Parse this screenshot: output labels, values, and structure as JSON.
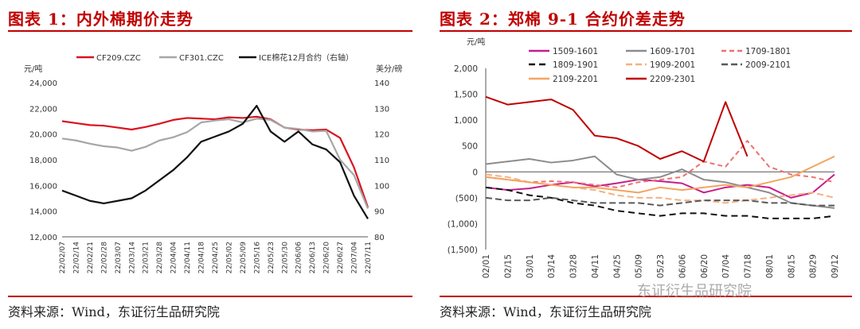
{
  "chart1": {
    "title": "图表 1：内外棉期价走势",
    "source": "资料来源：Wind，东证衍生品研究院",
    "chart_data": {
      "type": "line",
      "ylabel_left": "元/吨",
      "ylabel_right": "美分/磅",
      "ylim_left": [
        12000,
        24000
      ],
      "ylim_right": [
        80,
        140
      ],
      "yticks_left": [
        "12,000",
        "14,000",
        "16,000",
        "18,000",
        "20,000",
        "22,000",
        "24,000"
      ],
      "yticks_right": [
        "80",
        "90",
        "100",
        "110",
        "120",
        "130",
        "140"
      ],
      "x": [
        "22/02/07",
        "22/02/14",
        "22/02/21",
        "22/02/28",
        "22/03/07",
        "22/03/14",
        "22/03/21",
        "22/03/28",
        "22/04/04",
        "22/04/11",
        "22/04/18",
        "22/04/25",
        "22/05/02",
        "22/05/09",
        "22/05/16",
        "22/05/23",
        "22/05/30",
        "22/06/06",
        "22/06/13",
        "22/06/20",
        "22/06/27",
        "22/07/04",
        "22/07/11"
      ],
      "series": [
        {
          "name": "CF209.CZC",
          "axis": "left",
          "color": "#d9131f",
          "values": [
            21000,
            20850,
            20700,
            20650,
            20500,
            20350,
            20550,
            20800,
            21100,
            21250,
            21200,
            21150,
            21300,
            21250,
            21350,
            21150,
            20500,
            20350,
            20300,
            20350,
            19700,
            17400,
            14300
          ]
        },
        {
          "name": "CF301.CZC",
          "axis": "left",
          "color": "#a6a6a6",
          "values": [
            19650,
            19500,
            19250,
            19050,
            18950,
            18700,
            19000,
            19500,
            19750,
            20150,
            20900,
            21050,
            21150,
            20900,
            21200,
            21100,
            20500,
            20400,
            20200,
            20250,
            18000,
            16800,
            14200
          ]
        },
        {
          "name": "ICE棉花12月合约（右轴）",
          "axis": "right",
          "color": "#111111",
          "values": [
            98,
            96,
            94,
            93,
            94,
            95,
            98,
            102,
            106,
            111,
            117,
            119,
            121,
            124,
            131,
            121,
            117,
            121,
            116,
            114,
            109,
            96,
            87
          ]
        }
      ]
    }
  },
  "chart2": {
    "title": "图表 2：郑棉 9-1 合约价差走势",
    "source": "资料来源：Wind，东证衍生品研究院",
    "watermark": "东证衍生品研究院",
    "chart_data": {
      "type": "line",
      "ylabel": "元/吨",
      "ylim": [
        -1500,
        2000
      ],
      "yticks": [
        "(1,500)",
        "(1,000)",
        "(500)",
        "0",
        "500",
        "1,000",
        "1,500",
        "2,000"
      ],
      "x": [
        "02/01",
        "02/15",
        "03/01",
        "03/14",
        "03/28",
        "04/11",
        "04/25",
        "05/09",
        "05/23",
        "06/06",
        "06/20",
        "07/04",
        "07/18",
        "08/01",
        "08/15",
        "08/29",
        "09/12"
      ],
      "series": [
        {
          "name": "1509-1601",
          "color": "#c41e8c",
          "dash": "none",
          "values": [
            -300,
            -350,
            -320,
            -250,
            -200,
            -280,
            -220,
            -150,
            -180,
            -220,
            -400,
            -300,
            -250,
            -300,
            -500,
            -400,
            -50
          ]
        },
        {
          "name": "1609-1701",
          "color": "#8c8c8c",
          "dash": "none",
          "values": [
            150,
            200,
            250,
            180,
            220,
            300,
            -50,
            -150,
            -100,
            50,
            -150,
            -200,
            -300,
            -400,
            -600,
            -650,
            -700
          ]
        },
        {
          "name": "1709-1801",
          "color": "#f07070",
          "dash": "6,4",
          "values": [
            -100,
            -150,
            -200,
            -180,
            -200,
            -250,
            -300,
            -200,
            -150,
            -100,
            200,
            100,
            600,
            100,
            -50,
            -100,
            -200
          ]
        },
        {
          "name": "1809-1901",
          "color": "#111111",
          "dash": "8,5",
          "values": [
            -300,
            -350,
            -450,
            -500,
            -600,
            -650,
            -750,
            -800,
            -850,
            -800,
            -800,
            -850,
            -850,
            -900,
            -900,
            -900,
            -850
          ]
        },
        {
          "name": "1909-2001",
          "color": "#f4b183",
          "dash": "8,4",
          "values": [
            -50,
            -100,
            -200,
            -250,
            -300,
            -350,
            -450,
            -500,
            -500,
            -550,
            -550,
            -600,
            -550,
            -500,
            -450,
            -400,
            -500
          ]
        },
        {
          "name": "2009-2101",
          "color": "#595959",
          "dash": "8,4",
          "values": [
            -500,
            -550,
            -550,
            -500,
            -550,
            -600,
            -600,
            -600,
            -650,
            -600,
            -550,
            -550,
            -550,
            -600,
            -600,
            -650,
            -650
          ]
        },
        {
          "name": "2109-2201",
          "color": "#f4a460",
          "dash": "none",
          "values": [
            -100,
            -150,
            -200,
            -250,
            -300,
            -300,
            -350,
            -400,
            -300,
            -350,
            -300,
            -250,
            -300,
            -200,
            -100,
            100,
            300
          ]
        },
        {
          "name": "2209-2301",
          "color": "#c00000",
          "dash": "none",
          "values": [
            1450,
            1300,
            1350,
            1400,
            1200,
            700,
            650,
            500,
            250,
            400,
            200,
            1350,
            300,
            null,
            null,
            null,
            null
          ]
        }
      ]
    }
  }
}
